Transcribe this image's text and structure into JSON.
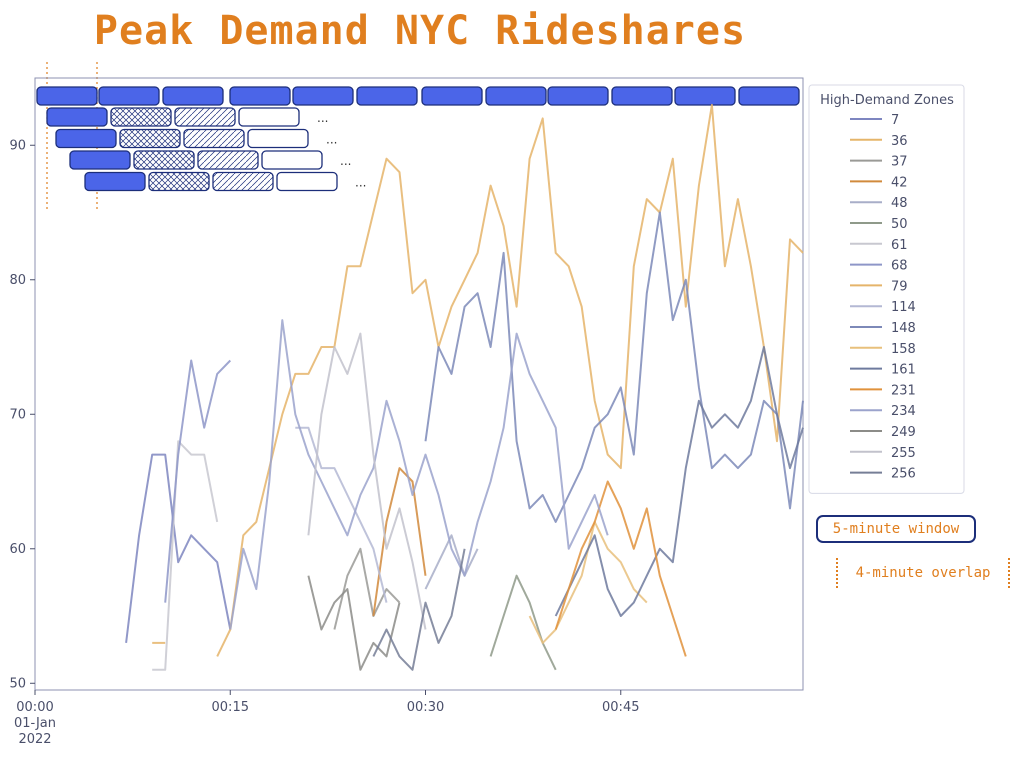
{
  "title": "Peak Demand NYC Rideshares",
  "annotations": {
    "window_label": "5-minute window",
    "overlap_label": "4-minute overlap",
    "ellipsis": "..."
  },
  "colors": {
    "title": "#e07f1f",
    "window_fill": "#4b65e8",
    "window_stroke": "#1c2e7a",
    "frame": "#8c92b0",
    "tick_text": "#4a4f6a"
  },
  "window_rows": [
    [
      "filled",
      "filled",
      "filled",
      "filled",
      "filled",
      "filled",
      "filled",
      "filled",
      "filled",
      "filled",
      "filled",
      "filled"
    ],
    [
      "filled",
      "crosshatch",
      "hatch",
      "empty"
    ],
    [
      "filled",
      "crosshatch",
      "hatch",
      "empty"
    ],
    [
      "filled",
      "crosshatch",
      "hatch",
      "empty"
    ],
    [
      "filled",
      "crosshatch",
      "hatch",
      "empty"
    ]
  ],
  "chart_data": {
    "type": "line",
    "title": "Peak Demand NYC Rideshares",
    "xlabel": "",
    "ylabel": "",
    "x_unit": "minutes after 2022-01-01 00:00",
    "xlim": [
      0,
      59
    ],
    "ylim": [
      49.5,
      95
    ],
    "y_ticks": [
      50,
      60,
      70,
      80,
      90
    ],
    "x_ticks": [
      {
        "value": 0,
        "label": "00:00",
        "sublabel": "01-Jan",
        "sublabel2": "2022"
      },
      {
        "value": 15,
        "label": "00:15"
      },
      {
        "value": 30,
        "label": "00:30"
      },
      {
        "value": 45,
        "label": "00:45"
      }
    ],
    "grid": false,
    "legend_title": "High-Demand Zones",
    "legend_position": "right",
    "series": [
      {
        "name": "7",
        "color": "#7e86c0",
        "x": [
          7,
          8,
          9,
          10,
          11,
          12,
          13,
          14,
          15
        ],
        "values": [
          53,
          61,
          67,
          67,
          59,
          61,
          60,
          59,
          54
        ]
      },
      {
        "name": "36",
        "color": "#e5b56a",
        "x": [
          9,
          10
        ],
        "values": [
          53,
          53
        ]
      },
      {
        "name": "37",
        "color": "#9a9a96",
        "x": [
          23,
          24,
          25,
          26,
          27,
          28
        ],
        "values": [
          54,
          58,
          60,
          55,
          57,
          56
        ]
      },
      {
        "name": "42",
        "color": "#d18a3c",
        "x": [
          26,
          27,
          28,
          29,
          30
        ],
        "values": [
          55,
          62,
          66,
          65,
          58
        ]
      },
      {
        "name": "48",
        "color": "#a8aec8",
        "x": [
          30,
          31,
          32,
          33,
          34
        ],
        "values": [
          57,
          59,
          61,
          58,
          60
        ]
      },
      {
        "name": "50",
        "color": "#8f9a8a",
        "x": [
          35,
          36,
          37,
          38,
          39,
          40
        ],
        "values": [
          52,
          55,
          58,
          56,
          53,
          51
        ]
      },
      {
        "name": "61",
        "color": "#c8c8d0",
        "x": [
          9,
          10,
          11,
          12,
          13,
          14
        ],
        "values": [
          51,
          51,
          68,
          67,
          67,
          62
        ]
      },
      {
        "name": "68",
        "color": "#8e96c8",
        "x": [
          10,
          11,
          12,
          13,
          14,
          15
        ],
        "values": [
          56,
          67,
          74,
          69,
          73,
          74
        ]
      },
      {
        "name": "79",
        "color": "#e5b46a",
        "x": [
          14,
          15,
          16,
          17,
          18,
          19,
          20,
          21,
          22,
          23,
          24,
          25,
          26,
          27,
          28,
          29,
          30,
          31,
          32,
          33,
          34,
          35,
          36,
          37,
          38,
          39,
          40,
          41,
          42,
          43,
          44,
          45,
          46,
          47,
          48,
          49,
          50,
          51,
          52,
          53,
          54,
          55,
          56,
          57,
          58,
          59
        ],
        "values": [
          52,
          54,
          61,
          62,
          66,
          70,
          73,
          73,
          75,
          75,
          81,
          81,
          85,
          89,
          88,
          79,
          80,
          75,
          78,
          80,
          82,
          87,
          84,
          78,
          89,
          92,
          82,
          81,
          78,
          71,
          67,
          66,
          81,
          86,
          85,
          89,
          78,
          87,
          93,
          81,
          86,
          81,
          75,
          68,
          83,
          82
        ]
      },
      {
        "name": "114",
        "color": "#b4b8d4",
        "x": [
          20,
          21,
          22,
          23,
          24,
          25,
          26,
          27
        ],
        "values": [
          69,
          69,
          66,
          66,
          64,
          62,
          60,
          56
        ]
      },
      {
        "name": "148",
        "color": "#7d89b8",
        "x": [
          30,
          31,
          32,
          33,
          34,
          35,
          36,
          37,
          38,
          39,
          40,
          41,
          42,
          43,
          44,
          45,
          46,
          47,
          48,
          49,
          50,
          51,
          52,
          53,
          54,
          55,
          56,
          57,
          58,
          59
        ],
        "values": [
          68,
          75,
          73,
          78,
          79,
          75,
          82,
          68,
          63,
          64,
          62,
          64,
          66,
          69,
          70,
          72,
          67,
          79,
          85,
          77,
          80,
          72,
          66,
          67,
          66,
          67,
          71,
          70,
          63,
          71
        ]
      },
      {
        "name": "158",
        "color": "#e8c07c",
        "x": [
          38,
          39,
          40,
          41,
          42,
          43,
          44,
          45,
          46,
          47
        ],
        "values": [
          55,
          53,
          54,
          56,
          58,
          62,
          60,
          59,
          57,
          56
        ]
      },
      {
        "name": "161",
        "color": "#6e7a9e",
        "x": [
          40,
          41,
          42,
          43,
          44,
          45,
          46,
          47,
          48,
          49,
          50,
          51,
          52,
          53,
          54,
          55,
          56,
          57,
          58,
          59
        ],
        "values": [
          55,
          57,
          59,
          61,
          57,
          55,
          56,
          58,
          60,
          59,
          66,
          71,
          69,
          70,
          69,
          71,
          75,
          70,
          66,
          69
        ]
      },
      {
        "name": "231",
        "color": "#e0923c",
        "x": [
          40,
          41,
          42,
          43,
          44,
          45,
          46,
          47,
          48,
          49,
          50
        ],
        "values": [
          54,
          57,
          60,
          62,
          65,
          63,
          60,
          63,
          58,
          55,
          52
        ]
      },
      {
        "name": "234",
        "color": "#9ba3cc",
        "x": [
          15,
          16,
          17,
          18,
          19,
          20,
          21,
          22,
          23,
          24,
          25,
          26,
          27,
          28,
          29,
          30,
          31,
          32,
          33,
          34,
          35,
          36,
          37,
          38,
          39,
          40,
          41,
          42,
          43,
          44
        ],
        "values": [
          54,
          60,
          57,
          65,
          77,
          70,
          67,
          65,
          63,
          61,
          64,
          66,
          71,
          68,
          64,
          67,
          64,
          60,
          58,
          62,
          65,
          69,
          76,
          73,
          71,
          69,
          60,
          62,
          64,
          61
        ]
      },
      {
        "name": "249",
        "color": "#8c8c88",
        "x": [
          21,
          22,
          23,
          24,
          25,
          26,
          27,
          28
        ],
        "values": [
          58,
          54,
          56,
          57,
          51,
          53,
          52,
          56
        ]
      },
      {
        "name": "255",
        "color": "#c2c2cc",
        "x": [
          21,
          22,
          23,
          24,
          25,
          26,
          27,
          28,
          29,
          30
        ],
        "values": [
          61,
          70,
          75,
          73,
          76,
          67,
          60,
          63,
          59,
          54
        ]
      },
      {
        "name": "256",
        "color": "#767e96",
        "x": [
          26,
          27,
          28,
          29,
          30,
          31,
          32,
          33
        ],
        "values": [
          52,
          54,
          52,
          51,
          56,
          53,
          55,
          60
        ]
      }
    ]
  }
}
